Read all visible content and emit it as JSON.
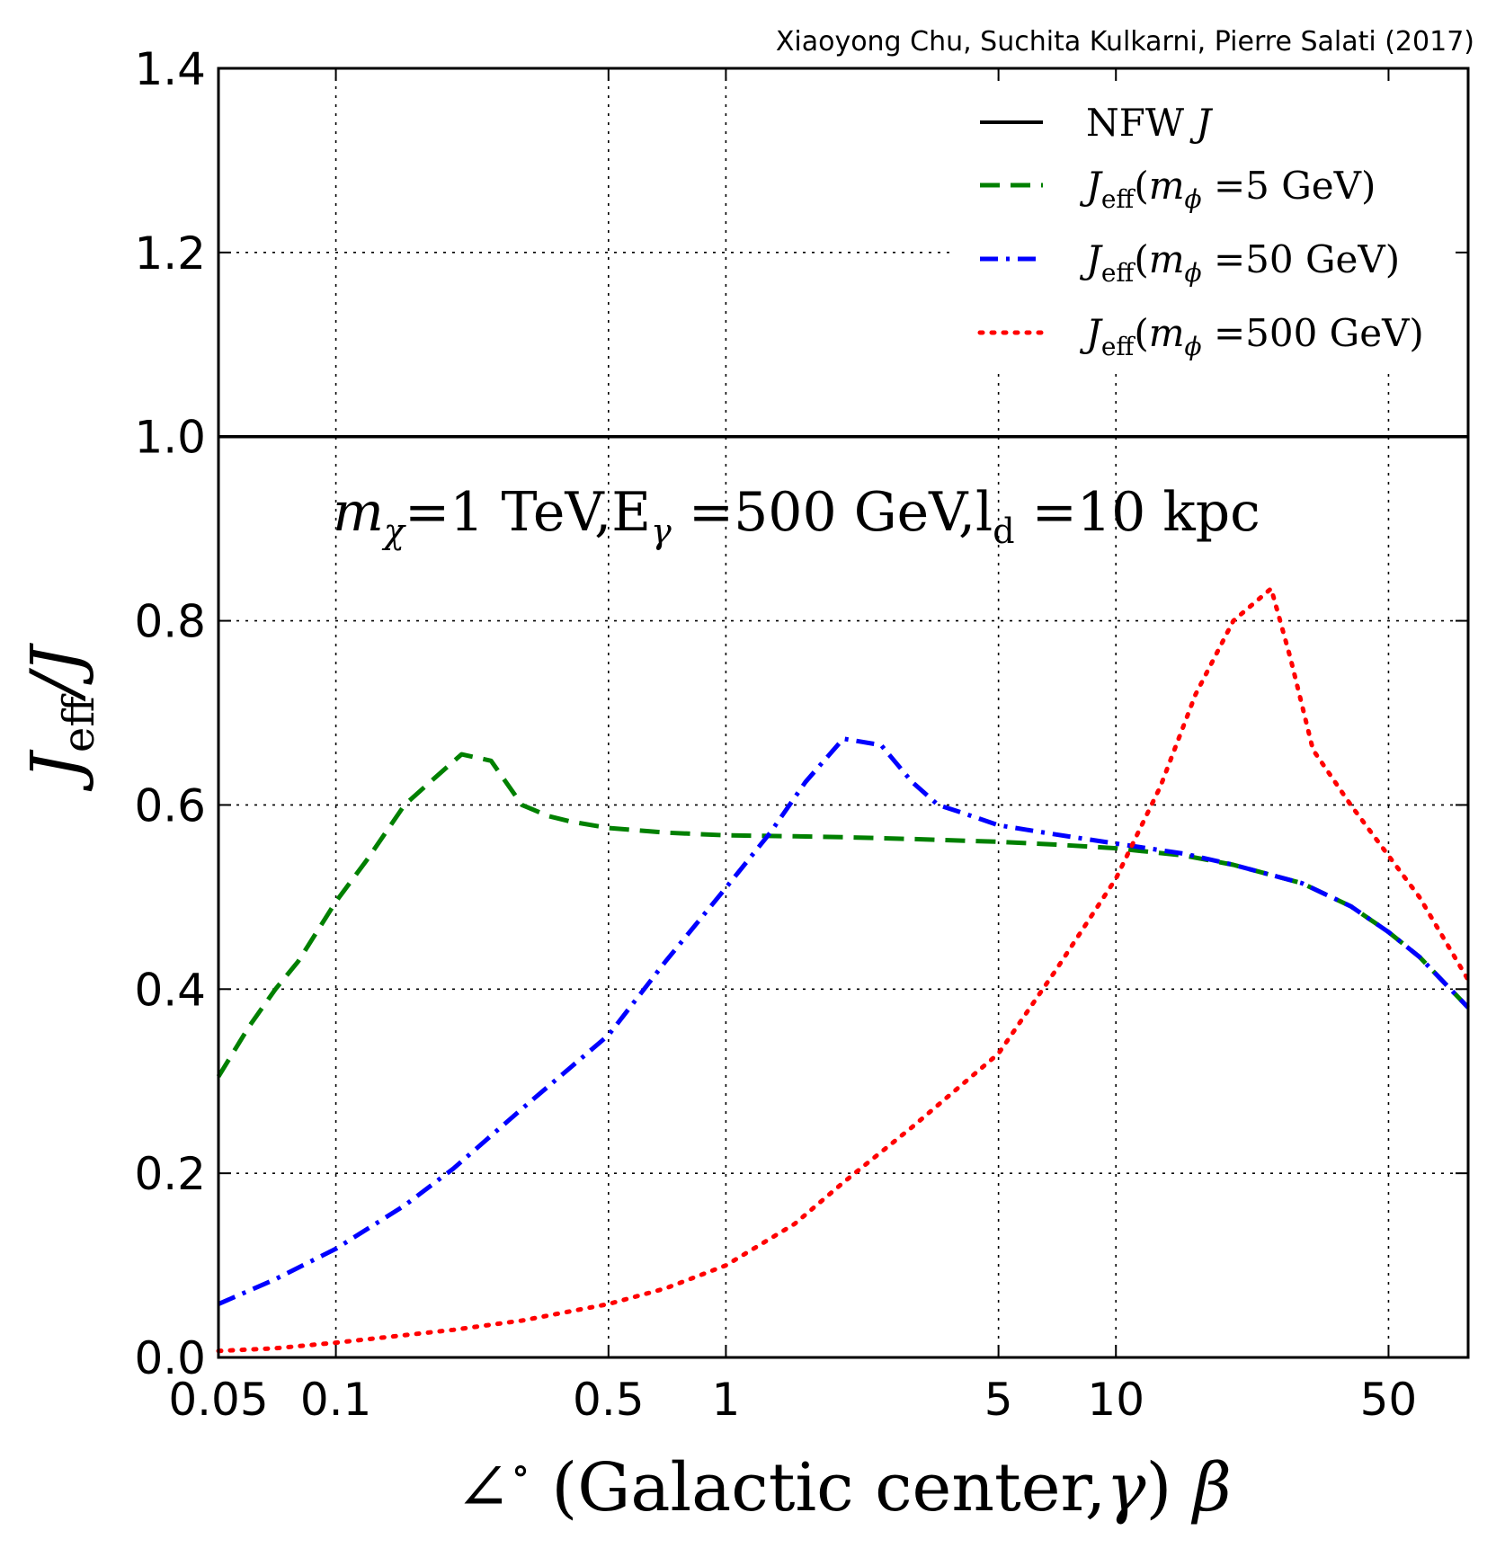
{
  "chart_data": {
    "type": "line",
    "credit": "Xiaoyong Chu, Suchita Kulkarni, Pierre Salati (2017)",
    "annotation": {
      "m": "m",
      "chi": "χ",
      "rest1": "=1 TeV,E",
      "gamma": "γ",
      "rest2": " =500 GeV,l",
      "d": "d",
      "rest3": " =10 kpc"
    },
    "xlabel": {
      "prefix": "∠",
      "degree": "∘",
      "main": " (Galactic center,",
      "gamma": "γ",
      "close": ") ",
      "beta": "β"
    },
    "ylabel": {
      "J": "J",
      "sub": "eff",
      "rest": "/J"
    },
    "x_scale": "log",
    "xlim": [
      0.05,
      80
    ],
    "ylim": [
      0,
      1.4
    ],
    "x_ticks": [
      {
        "v": 0.05,
        "label": "0.05"
      },
      {
        "v": 0.1,
        "label": "0.1"
      },
      {
        "v": 0.5,
        "label": "0.5"
      },
      {
        "v": 1,
        "label": "1"
      },
      {
        "v": 5,
        "label": "5"
      },
      {
        "v": 10,
        "label": "10"
      },
      {
        "v": 50,
        "label": "50"
      }
    ],
    "y_ticks": [
      {
        "v": 0,
        "label": "0.0"
      },
      {
        "v": 0.2,
        "label": "0.2"
      },
      {
        "v": 0.4,
        "label": "0.4"
      },
      {
        "v": 0.6,
        "label": "0.6"
      },
      {
        "v": 0.8,
        "label": "0.8"
      },
      {
        "v": 1.0,
        "label": "1.0"
      },
      {
        "v": 1.2,
        "label": "1.2"
      },
      {
        "v": 1.4,
        "label": "1.4"
      }
    ],
    "grid": true,
    "legend_position": "top-right",
    "series": [
      {
        "legend": {
          "main": "NFW ",
          "italic": "J"
        },
        "color": "#000000",
        "style": "solid",
        "x": [
          0.05,
          80
        ],
        "y": [
          1.0,
          1.0
        ]
      },
      {
        "legend": {
          "j": "J",
          "sub": "eff",
          "open": "(",
          "m": "m",
          "phi": "ϕ",
          "rest": " =5 GeV)"
        },
        "color": "#008000",
        "style": "dashed",
        "x": [
          0.05,
          0.06,
          0.07,
          0.08,
          0.1,
          0.12,
          0.15,
          0.18,
          0.21,
          0.25,
          0.3,
          0.35,
          0.4,
          0.5,
          0.7,
          1,
          1.5,
          2,
          3,
          5,
          7,
          10,
          15,
          20,
          30,
          40,
          50,
          60,
          80
        ],
        "y": [
          0.305,
          0.36,
          0.4,
          0.43,
          0.495,
          0.54,
          0.6,
          0.63,
          0.655,
          0.648,
          0.6,
          0.588,
          0.582,
          0.575,
          0.57,
          0.567,
          0.566,
          0.565,
          0.563,
          0.56,
          0.557,
          0.553,
          0.545,
          0.535,
          0.515,
          0.49,
          0.462,
          0.435,
          0.38
        ]
      },
      {
        "legend": {
          "j": "J",
          "sub": "eff",
          "open": "(",
          "m": "m",
          "phi": "ϕ",
          "rest": " =50 GeV)"
        },
        "color": "#0000ff",
        "style": "dashdot",
        "x": [
          0.05,
          0.07,
          0.1,
          0.15,
          0.2,
          0.3,
          0.5,
          0.7,
          1,
          1.3,
          1.6,
          2,
          2.5,
          3,
          3.5,
          4,
          5,
          7,
          10,
          15,
          20,
          30,
          40,
          50,
          60,
          80
        ],
        "y": [
          0.058,
          0.085,
          0.118,
          0.165,
          0.205,
          0.27,
          0.35,
          0.43,
          0.51,
          0.57,
          0.625,
          0.672,
          0.665,
          0.625,
          0.6,
          0.592,
          0.578,
          0.568,
          0.558,
          0.547,
          0.535,
          0.515,
          0.49,
          0.462,
          0.435,
          0.38
        ]
      },
      {
        "legend": {
          "j": "J",
          "sub": "eff",
          "open": "(",
          "m": "m",
          "phi": "ϕ",
          "rest": " =500 GeV)"
        },
        "color": "#ff0000",
        "style": "dotted",
        "x": [
          0.05,
          0.07,
          0.1,
          0.2,
          0.3,
          0.5,
          0.7,
          1,
          1.5,
          2,
          3,
          5,
          7,
          10,
          13,
          16,
          20,
          25,
          28,
          32,
          40,
          50,
          60,
          80
        ],
        "y": [
          0.007,
          0.01,
          0.016,
          0.03,
          0.04,
          0.058,
          0.075,
          0.1,
          0.145,
          0.19,
          0.25,
          0.33,
          0.42,
          0.52,
          0.62,
          0.72,
          0.8,
          0.835,
          0.76,
          0.66,
          0.6,
          0.545,
          0.5,
          0.41
        ]
      }
    ]
  }
}
